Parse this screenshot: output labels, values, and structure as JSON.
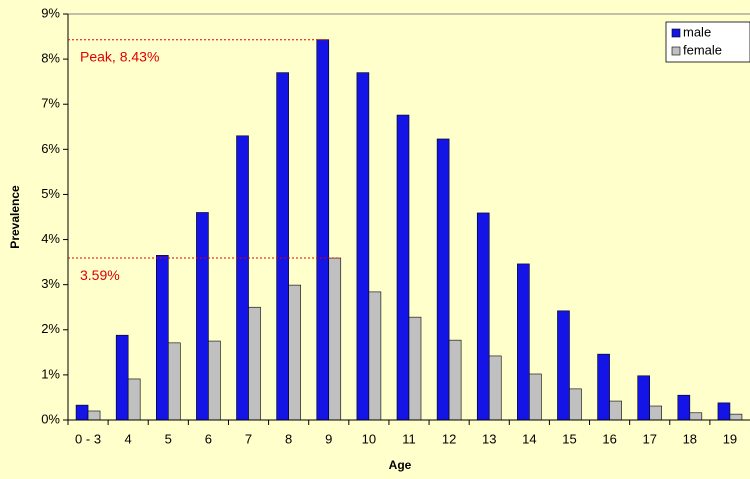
{
  "chart_data": {
    "type": "bar",
    "categories": [
      "0 - 3",
      "4",
      "5",
      "6",
      "7",
      "8",
      "9",
      "10",
      "11",
      "12",
      "13",
      "14",
      "15",
      "16",
      "17",
      "18",
      "19"
    ],
    "series": [
      {
        "name": "male",
        "color": "#1414e6",
        "values": [
          0.33,
          1.88,
          3.65,
          4.6,
          6.3,
          7.7,
          8.43,
          7.7,
          6.76,
          6.23,
          4.59,
          3.46,
          2.42,
          1.46,
          0.98,
          0.55,
          0.38
        ]
      },
      {
        "name": "female",
        "color": "#c0c0c0",
        "values": [
          0.2,
          0.91,
          1.71,
          1.75,
          2.5,
          2.99,
          3.59,
          2.84,
          2.28,
          1.77,
          1.42,
          1.02,
          0.69,
          0.42,
          0.31,
          0.16,
          0.13
        ]
      }
    ],
    "xlabel": "Age",
    "ylabel": "Prevalence",
    "ylim": [
      0,
      9
    ],
    "yticks": [
      {
        "value": 0,
        "label": "0%"
      },
      {
        "value": 1,
        "label": "1%"
      },
      {
        "value": 2,
        "label": "2%"
      },
      {
        "value": 3,
        "label": "3%"
      },
      {
        "value": 4,
        "label": "4%"
      },
      {
        "value": 5,
        "label": "5%"
      },
      {
        "value": 6,
        "label": "6%"
      },
      {
        "value": 7,
        "label": "7%"
      },
      {
        "value": 8,
        "label": "8%"
      },
      {
        "value": 9,
        "label": "9%"
      }
    ],
    "annotations": [
      {
        "label": "Peak, 8.43%",
        "value": 8.43,
        "category": 6,
        "series": 0
      },
      {
        "label": "3.59%",
        "value": 3.59,
        "category": 6,
        "series": 1
      }
    ],
    "legend": "upper right",
    "grid": false
  }
}
